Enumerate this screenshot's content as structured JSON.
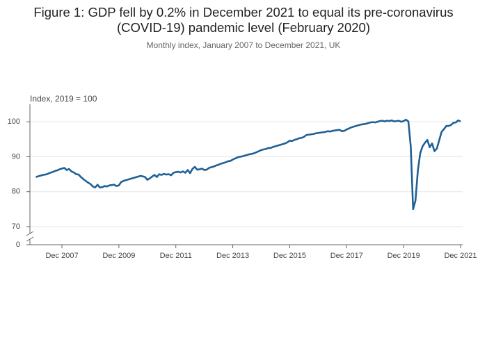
{
  "chart_data": {
    "type": "line",
    "title": "Figure 1: GDP fell by 0.2% in December 2021 to equal its pre-coronavirus (COVID-19) pandemic level (February 2020)",
    "subtitle": "Monthly index, January 2007 to December 2021, UK",
    "y_axis_label": "Index, 2019 = 100",
    "categories": [
      "Jan 2007",
      "Feb 2007",
      "Mar 2007",
      "Apr 2007",
      "May 2007",
      "Jun 2007",
      "Jul 2007",
      "Aug 2007",
      "Sep 2007",
      "Oct 2007",
      "Nov 2007",
      "Dec 2007",
      "Jan 2008",
      "Feb 2008",
      "Mar 2008",
      "Apr 2008",
      "May 2008",
      "Jun 2008",
      "Jul 2008",
      "Aug 2008",
      "Sep 2008",
      "Oct 2008",
      "Nov 2008",
      "Dec 2008",
      "Jan 2009",
      "Feb 2009",
      "Mar 2009",
      "Apr 2009",
      "May 2009",
      "Jun 2009",
      "Jul 2009",
      "Aug 2009",
      "Sep 2009",
      "Oct 2009",
      "Nov 2009",
      "Dec 2009",
      "Jan 2010",
      "Feb 2010",
      "Mar 2010",
      "Apr 2010",
      "May 2010",
      "Jun 2010",
      "Jul 2010",
      "Aug 2010",
      "Sep 2010",
      "Oct 2010",
      "Nov 2010",
      "Dec 2010",
      "Jan 2011",
      "Feb 2011",
      "Mar 2011",
      "Apr 2011",
      "May 2011",
      "Jun 2011",
      "Jul 2011",
      "Aug 2011",
      "Sep 2011",
      "Oct 2011",
      "Nov 2011",
      "Dec 2011",
      "Jan 2012",
      "Feb 2012",
      "Mar 2012",
      "Apr 2012",
      "May 2012",
      "Jun 2012",
      "Jul 2012",
      "Aug 2012",
      "Sep 2012",
      "Oct 2012",
      "Nov 2012",
      "Dec 2012",
      "Jan 2013",
      "Feb 2013",
      "Mar 2013",
      "Apr 2013",
      "May 2013",
      "Jun 2013",
      "Jul 2013",
      "Aug 2013",
      "Sep 2013",
      "Oct 2013",
      "Nov 2013",
      "Dec 2013",
      "Jan 2014",
      "Feb 2014",
      "Mar 2014",
      "Apr 2014",
      "May 2014",
      "Jun 2014",
      "Jul 2014",
      "Aug 2014",
      "Sep 2014",
      "Oct 2014",
      "Nov 2014",
      "Dec 2014",
      "Jan 2015",
      "Feb 2015",
      "Mar 2015",
      "Apr 2015",
      "May 2015",
      "Jun 2015",
      "Jul 2015",
      "Aug 2015",
      "Sep 2015",
      "Oct 2015",
      "Nov 2015",
      "Dec 2015",
      "Jan 2016",
      "Feb 2016",
      "Mar 2016",
      "Apr 2016",
      "May 2016",
      "Jun 2016",
      "Jul 2016",
      "Aug 2016",
      "Sep 2016",
      "Oct 2016",
      "Nov 2016",
      "Dec 2016",
      "Jan 2017",
      "Feb 2017",
      "Mar 2017",
      "Apr 2017",
      "May 2017",
      "Jun 2017",
      "Jul 2017",
      "Aug 2017",
      "Sep 2017",
      "Oct 2017",
      "Nov 2017",
      "Dec 2017",
      "Jan 2018",
      "Feb 2018",
      "Mar 2018",
      "Apr 2018",
      "May 2018",
      "Jun 2018",
      "Jul 2018",
      "Aug 2018",
      "Sep 2018",
      "Oct 2018",
      "Nov 2018",
      "Dec 2018",
      "Jan 2019",
      "Feb 2019",
      "Mar 2019",
      "Apr 2019",
      "May 2019",
      "Jun 2019",
      "Jul 2019",
      "Aug 2019",
      "Sep 2019",
      "Oct 2019",
      "Nov 2019",
      "Dec 2019",
      "Jan 2020",
      "Feb 2020",
      "Mar 2020",
      "Apr 2020",
      "May 2020",
      "Jun 2020",
      "Jul 2020",
      "Aug 2020",
      "Sep 2020",
      "Oct 2020",
      "Nov 2020",
      "Dec 2020",
      "Jan 2021",
      "Feb 2021",
      "Mar 2021",
      "Apr 2021",
      "May 2021",
      "Jun 2021",
      "Jul 2021",
      "Aug 2021",
      "Sep 2021",
      "Oct 2021",
      "Nov 2021",
      "Dec 2021"
    ],
    "series": [
      {
        "name": "GDP",
        "color": "#206095",
        "values": [
          84.2,
          84.4,
          84.6,
          84.8,
          84.9,
          85.1,
          85.4,
          85.6,
          85.9,
          86.1,
          86.4,
          86.6,
          86.8,
          86.2,
          86.5,
          85.8,
          85.5,
          85.0,
          84.9,
          84.2,
          83.6,
          83.1,
          82.6,
          82.2,
          81.5,
          81.2,
          82.0,
          81.2,
          81.3,
          81.6,
          81.5,
          81.8,
          81.9,
          82.0,
          81.6,
          81.8,
          82.8,
          83.1,
          83.3,
          83.5,
          83.7,
          83.9,
          84.1,
          84.3,
          84.5,
          84.4,
          84.2,
          83.4,
          83.8,
          84.3,
          84.8,
          84.2,
          85.0,
          84.8,
          85.1,
          84.9,
          85.0,
          84.7,
          85.4,
          85.6,
          85.7,
          85.5,
          85.8,
          85.4,
          86.2,
          85.3,
          86.5,
          87.1,
          86.3,
          86.4,
          86.6,
          86.2,
          86.3,
          86.8,
          87.0,
          87.2,
          87.5,
          87.7,
          88.0,
          88.2,
          88.4,
          88.7,
          88.8,
          89.2,
          89.5,
          89.8,
          90.0,
          90.1,
          90.3,
          90.5,
          90.7,
          90.8,
          91.0,
          91.3,
          91.6,
          91.9,
          92.1,
          92.2,
          92.5,
          92.5,
          92.8,
          93.0,
          93.2,
          93.4,
          93.6,
          93.8,
          94.1,
          94.6,
          94.5,
          94.8,
          95.0,
          95.3,
          95.4,
          95.7,
          96.2,
          96.3,
          96.4,
          96.5,
          96.7,
          96.8,
          96.9,
          97.0,
          97.1,
          97.3,
          97.2,
          97.4,
          97.5,
          97.6,
          97.7,
          97.3,
          97.4,
          97.8,
          98.1,
          98.4,
          98.6,
          98.8,
          99.0,
          99.2,
          99.3,
          99.4,
          99.6,
          99.8,
          99.9,
          99.8,
          100.0,
          100.2,
          100.3,
          100.1,
          100.3,
          100.2,
          100.4,
          100.1,
          100.2,
          100.3,
          100.0,
          100.2,
          100.6,
          100.1,
          93.0,
          75.0,
          77.5,
          86.0,
          91.0,
          93.0,
          94.0,
          94.8,
          92.7,
          93.8,
          91.6,
          92.3,
          94.7,
          97.1,
          97.9,
          98.8,
          98.8,
          99.1,
          99.7,
          99.8,
          100.4,
          100.1
        ]
      }
    ],
    "xticks": [
      "Dec 2007",
      "Dec 2009",
      "Dec 2011",
      "Dec 2013",
      "Dec 2015",
      "Dec 2017",
      "Dec 2019",
      "Dec 2021"
    ],
    "ylim": [
      0,
      105
    ],
    "yticks": [
      0,
      70,
      80,
      90,
      100
    ],
    "axis_break": true,
    "grid": true
  }
}
